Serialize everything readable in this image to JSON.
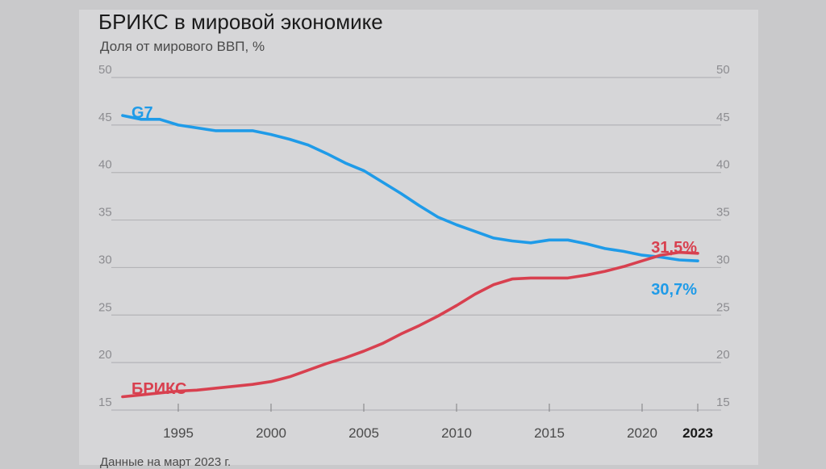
{
  "header": {
    "title": "БРИКС в мировой экономике",
    "subtitle": "Доля от мирового ВВП, %"
  },
  "footer": {
    "note": "Данные на март 2023 г."
  },
  "colors": {
    "g7": "#1f9be8",
    "brics": "#d8404f"
  },
  "chart_data": {
    "type": "line",
    "title": "БРИКС в мировой экономике",
    "subtitle": "Доля от мирового ВВП, %",
    "xlabel": "",
    "ylabel": "",
    "xlim": [
      1990.5,
      2023
    ],
    "ylim": [
      15,
      50
    ],
    "y_ticks": [
      15,
      20,
      25,
      30,
      35,
      40,
      45,
      50
    ],
    "y_tick_labels": [
      "15",
      "20",
      "25",
      "30",
      "35",
      "40",
      "45",
      "50"
    ],
    "x_ticks": [
      1995,
      2000,
      2005,
      2010,
      2015,
      2020,
      2023
    ],
    "x_tick_labels": [
      "1995",
      "2000",
      "2005",
      "2010",
      "2015",
      "2020",
      "2023"
    ],
    "grid": "horizontal",
    "series": [
      {
        "name": "G7",
        "color": "#1f9be8",
        "end_label": "30,7%",
        "points": [
          [
            1992,
            46.0
          ],
          [
            1993,
            45.6
          ],
          [
            1994,
            45.6
          ],
          [
            1995,
            45.0
          ],
          [
            1996,
            44.7
          ],
          [
            1997,
            44.4
          ],
          [
            1998,
            44.4
          ],
          [
            1999,
            44.4
          ],
          [
            2000,
            44.0
          ],
          [
            2001,
            43.5
          ],
          [
            2002,
            42.9
          ],
          [
            2003,
            42.0
          ],
          [
            2004,
            41.0
          ],
          [
            2005,
            40.2
          ],
          [
            2006,
            39.0
          ],
          [
            2007,
            37.8
          ],
          [
            2008,
            36.5
          ],
          [
            2009,
            35.3
          ],
          [
            2010,
            34.5
          ],
          [
            2011,
            33.8
          ],
          [
            2012,
            33.1
          ],
          [
            2013,
            32.8
          ],
          [
            2014,
            32.6
          ],
          [
            2015,
            32.9
          ],
          [
            2016,
            32.9
          ],
          [
            2017,
            32.5
          ],
          [
            2018,
            32.0
          ],
          [
            2019,
            31.7
          ],
          [
            2020,
            31.3
          ],
          [
            2021,
            31.1
          ],
          [
            2022,
            30.8
          ],
          [
            2023,
            30.7
          ]
        ]
      },
      {
        "name": "БРИКС",
        "color": "#d8404f",
        "end_label": "31,5%",
        "points": [
          [
            1992,
            16.4
          ],
          [
            1993,
            16.6
          ],
          [
            1994,
            16.8
          ],
          [
            1995,
            17.0
          ],
          [
            1996,
            17.1
          ],
          [
            1997,
            17.3
          ],
          [
            1998,
            17.5
          ],
          [
            1999,
            17.7
          ],
          [
            2000,
            18.0
          ],
          [
            2001,
            18.5
          ],
          [
            2002,
            19.2
          ],
          [
            2003,
            19.9
          ],
          [
            2004,
            20.5
          ],
          [
            2005,
            21.2
          ],
          [
            2006,
            22.0
          ],
          [
            2007,
            23.0
          ],
          [
            2008,
            23.9
          ],
          [
            2009,
            24.9
          ],
          [
            2010,
            26.0
          ],
          [
            2011,
            27.2
          ],
          [
            2012,
            28.2
          ],
          [
            2013,
            28.8
          ],
          [
            2014,
            28.9
          ],
          [
            2015,
            28.9
          ],
          [
            2016,
            28.9
          ],
          [
            2017,
            29.2
          ],
          [
            2018,
            29.6
          ],
          [
            2019,
            30.1
          ],
          [
            2020,
            30.7
          ],
          [
            2021,
            31.3
          ],
          [
            2022,
            31.6
          ],
          [
            2023,
            31.5
          ]
        ]
      }
    ]
  }
}
